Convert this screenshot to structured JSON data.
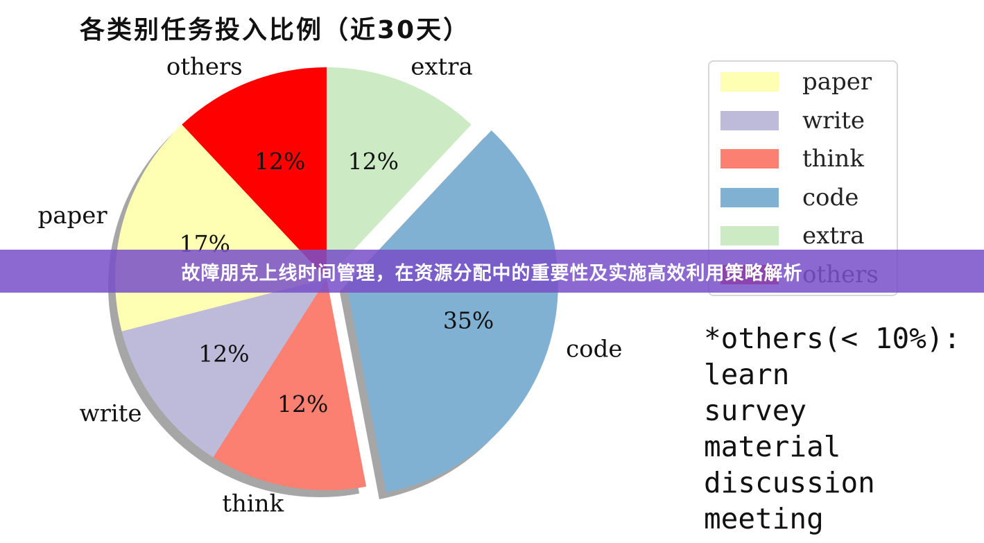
{
  "chart_data": {
    "type": "pie",
    "title": "各类别任务投入比例（近30天）",
    "slices": [
      {
        "label": "others",
        "value": 12,
        "pct_label": "12%",
        "color": "#ff0000"
      },
      {
        "label": "paper",
        "value": 17,
        "pct_label": "17%",
        "color": "#ffffb3"
      },
      {
        "label": "write",
        "value": 12,
        "pct_label": "12%",
        "color": "#bebada"
      },
      {
        "label": "think",
        "value": 12,
        "pct_label": "12%",
        "color": "#fb8072"
      },
      {
        "label": "code",
        "value": 35,
        "pct_label": "35%",
        "color": "#80b1d3",
        "exploded": true
      },
      {
        "label": "extra",
        "value": 12,
        "pct_label": "12%",
        "color": "#ccebc5"
      }
    ],
    "legend": {
      "placement": "right",
      "entries": [
        {
          "label": "paper",
          "color": "#ffffb3"
        },
        {
          "label": "write",
          "color": "#bebada"
        },
        {
          "label": "think",
          "color": "#fb8072"
        },
        {
          "label": "code",
          "color": "#80b1d3"
        },
        {
          "label": "extra",
          "color": "#ccebc5"
        },
        {
          "label": "others",
          "color": "#ff0000"
        }
      ]
    },
    "annotation": [
      "*others(< 10%):",
      "learn",
      "survey",
      "material",
      "discussion",
      "meeting"
    ],
    "shadow": true
  },
  "overlay": {
    "banner_text": "故障朋克上线时间管理，在资源分配中的重要性及实施高效利用策略解析",
    "banner_color": "#7850c8"
  }
}
